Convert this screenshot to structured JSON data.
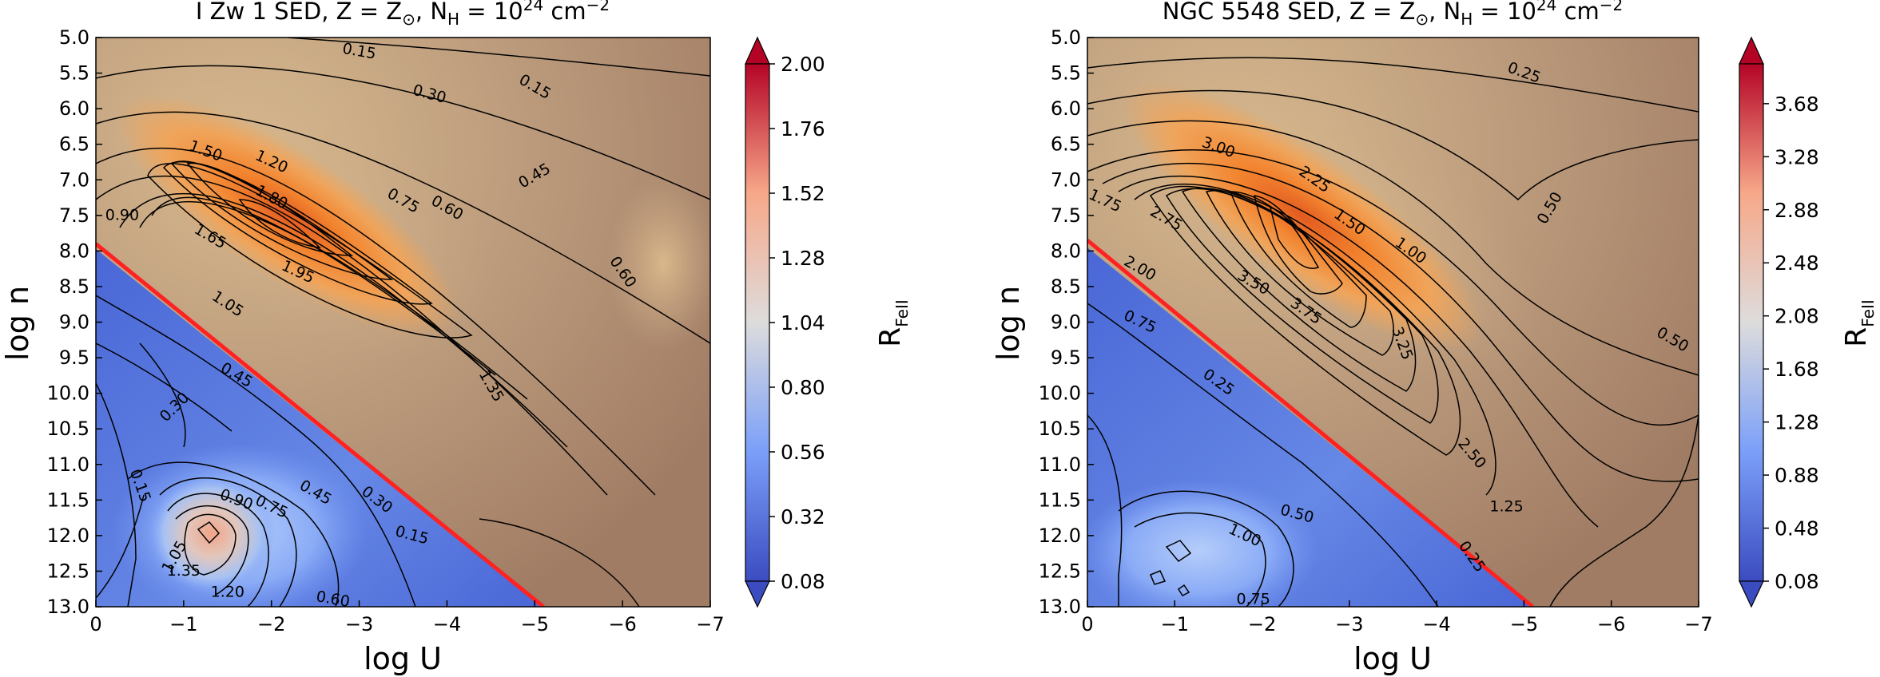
{
  "chart_data": [
    {
      "type": "heatmap",
      "title_prefix": "I Zw 1 SED, Z = Z",
      "title_sun_sub": "⊙",
      "title_mid": ", N",
      "title_h_sub": "H",
      "title_mid2": " = 10",
      "title_exp": "24",
      "title_suffix": " cm",
      "title_unit_exp": "−2",
      "xlabel": "log U",
      "ylabel": "log n",
      "colorbar_label_main": "R",
      "colorbar_label_sub": "FeII",
      "xlim": [
        0,
        -7
      ],
      "ylim": [
        5.0,
        13.0
      ],
      "x_ticks": [
        "0",
        "−1",
        "−2",
        "−3",
        "−4",
        "−5",
        "−6",
        "−7"
      ],
      "y_ticks": [
        "5.0",
        "5.5",
        "6.0",
        "6.5",
        "7.0",
        "7.5",
        "8.0",
        "8.5",
        "9.0",
        "9.5",
        "10.0",
        "10.5",
        "11.0",
        "11.5",
        "12.0",
        "12.5",
        "13.0"
      ],
      "colorbar_range": [
        0.08,
        2.0
      ],
      "colorbar_ticks": [
        "2.00",
        "1.76",
        "1.52",
        "1.28",
        "1.04",
        "0.80",
        "0.56",
        "0.32",
        "0.08"
      ],
      "boundary_line": {
        "color": "#ff2222",
        "from": [
          0.0,
          7.9
        ],
        "to": [
          -5.1,
          13.0
        ]
      },
      "peak": {
        "log_u": -2.2,
        "log_n": 8.0,
        "value": 1.98
      },
      "contour_levels": [
        0.15,
        0.3,
        0.45,
        0.6,
        0.75,
        0.9,
        1.05,
        1.2,
        1.35,
        1.5,
        1.65,
        1.8,
        1.95
      ],
      "contour_labels": [
        {
          "text": "0.15",
          "log_u": -3.0,
          "log_n": 5.2,
          "rot": 10
        },
        {
          "text": "0.30",
          "log_u": -3.8,
          "log_n": 5.8,
          "rot": 15
        },
        {
          "text": "0.15",
          "log_u": -5.0,
          "log_n": 5.7,
          "rot": 30
        },
        {
          "text": "1.50",
          "log_u": -1.25,
          "log_n": 6.6,
          "rot": 20
        },
        {
          "text": "1.20",
          "log_u": -2.0,
          "log_n": 6.75,
          "rot": 25
        },
        {
          "text": "1.80",
          "log_u": -2.0,
          "log_n": 7.25,
          "rot": 28
        },
        {
          "text": "0.75",
          "log_u": -3.5,
          "log_n": 7.3,
          "rot": 30
        },
        {
          "text": "0.60",
          "log_u": -4.0,
          "log_n": 7.4,
          "rot": 30
        },
        {
          "text": "0.45",
          "log_u": -5.0,
          "log_n": 6.95,
          "rot": -30
        },
        {
          "text": "0.90",
          "log_u": -0.3,
          "log_n": 7.5,
          "rot": 0
        },
        {
          "text": "1.65",
          "log_u": -1.3,
          "log_n": 7.8,
          "rot": 30
        },
        {
          "text": "1.95",
          "log_u": -2.3,
          "log_n": 8.3,
          "rot": 25
        },
        {
          "text": "0.60",
          "log_u": -6.0,
          "log_n": 8.3,
          "rot": 55
        },
        {
          "text": "1.05",
          "log_u": -1.5,
          "log_n": 8.75,
          "rot": 33
        },
        {
          "text": "0.45",
          "log_u": -1.6,
          "log_n": 9.75,
          "rot": 30
        },
        {
          "text": "1.35",
          "log_u": -4.5,
          "log_n": 9.9,
          "rot": 60
        },
        {
          "text": "0.30",
          "log_u": -0.9,
          "log_n": 10.2,
          "rot": -45
        },
        {
          "text": "0.30",
          "log_u": -3.2,
          "log_n": 11.5,
          "rot": 37
        },
        {
          "text": "0.15",
          "log_u": -0.5,
          "log_n": 11.3,
          "rot": 70
        },
        {
          "text": "0.90",
          "log_u": -1.6,
          "log_n": 11.5,
          "rot": 20
        },
        {
          "text": "0.75",
          "log_u": -2.0,
          "log_n": 11.6,
          "rot": 25
        },
        {
          "text": "0.45",
          "log_u": -2.5,
          "log_n": 11.4,
          "rot": 30
        },
        {
          "text": "0.15",
          "log_u": -3.6,
          "log_n": 12.0,
          "rot": 15
        },
        {
          "text": "1.05",
          "log_u": -0.9,
          "log_n": 12.3,
          "rot": -60
        },
        {
          "text": "1.35",
          "log_u": -1.0,
          "log_n": 12.5,
          "rot": 0
        },
        {
          "text": "1.20",
          "log_u": -1.5,
          "log_n": 12.8,
          "rot": 0
        },
        {
          "text": "0.60",
          "log_u": -2.7,
          "log_n": 12.9,
          "rot": 10
        }
      ]
    },
    {
      "type": "heatmap",
      "title_prefix": "NGC 5548 SED, Z = Z",
      "title_sun_sub": "⊙",
      "title_mid": ", N",
      "title_h_sub": "H",
      "title_mid2": " = 10",
      "title_exp": "24",
      "title_suffix": " cm",
      "title_unit_exp": "−2",
      "xlabel": "log U",
      "ylabel": "log n",
      "colorbar_label_main": "R",
      "colorbar_label_sub": "FeII",
      "xlim": [
        0,
        -7
      ],
      "ylim": [
        5.0,
        13.0
      ],
      "x_ticks": [
        "0",
        "−1",
        "−2",
        "−3",
        "−4",
        "−5",
        "−6",
        "−7"
      ],
      "y_ticks": [
        "5.0",
        "5.5",
        "6.0",
        "6.5",
        "7.0",
        "7.5",
        "8.0",
        "8.5",
        "9.0",
        "9.5",
        "10.0",
        "10.5",
        "11.0",
        "11.5",
        "12.0",
        "12.5",
        "13.0"
      ],
      "colorbar_range": [
        0.08,
        3.98
      ],
      "colorbar_ticks": [
        "3.68",
        "3.28",
        "2.88",
        "2.48",
        "2.08",
        "1.68",
        "1.28",
        "0.88",
        "0.48",
        "0.08"
      ],
      "boundary_line": {
        "color": "#ff2222",
        "from": [
          0.0,
          7.85
        ],
        "to": [
          -5.1,
          13.0
        ]
      },
      "peak": {
        "log_u": -2.3,
        "log_n": 7.9,
        "value": 3.95
      },
      "contour_levels": [
        0.25,
        0.5,
        0.75,
        1.0,
        1.25,
        1.5,
        1.75,
        2.0,
        2.25,
        2.5,
        2.75,
        3.0,
        3.25,
        3.5,
        3.75
      ],
      "contour_labels": [
        {
          "text": "0.25",
          "log_u": -5.0,
          "log_n": 5.5,
          "rot": 20
        },
        {
          "text": "3.00",
          "log_u": -1.5,
          "log_n": 6.55,
          "rot": 20
        },
        {
          "text": "2.25",
          "log_u": -2.6,
          "log_n": 7.0,
          "rot": 35
        },
        {
          "text": "1.50",
          "log_u": -3.0,
          "log_n": 7.6,
          "rot": 35
        },
        {
          "text": "1.00",
          "log_u": -3.7,
          "log_n": 8.0,
          "rot": 35
        },
        {
          "text": "0.50",
          "log_u": -5.3,
          "log_n": 7.4,
          "rot": -60
        },
        {
          "text": "1.75",
          "log_u": -0.2,
          "log_n": 7.3,
          "rot": 25
        },
        {
          "text": "2.75",
          "log_u": -0.9,
          "log_n": 7.55,
          "rot": 30
        },
        {
          "text": "2.00",
          "log_u": -0.6,
          "log_n": 8.25,
          "rot": 30
        },
        {
          "text": "3.50",
          "log_u": -1.9,
          "log_n": 8.45,
          "rot": 30
        },
        {
          "text": "3.75",
          "log_u": -2.5,
          "log_n": 8.85,
          "rot": 35
        },
        {
          "text": "0.75",
          "log_u": -0.6,
          "log_n": 9.0,
          "rot": 25
        },
        {
          "text": "3.25",
          "log_u": -3.6,
          "log_n": 9.3,
          "rot": 70
        },
        {
          "text": "0.50",
          "log_u": -6.7,
          "log_n": 9.25,
          "rot": 30
        },
        {
          "text": "0.25",
          "log_u": -1.5,
          "log_n": 9.85,
          "rot": 35
        },
        {
          "text": "2.50",
          "log_u": -4.4,
          "log_n": 10.85,
          "rot": 50
        },
        {
          "text": "1.25",
          "log_u": -4.8,
          "log_n": 11.6,
          "rot": 0
        },
        {
          "text": "0.50",
          "log_u": -2.4,
          "log_n": 11.7,
          "rot": 15
        },
        {
          "text": "1.00",
          "log_u": -1.8,
          "log_n": 12.0,
          "rot": 25
        },
        {
          "text": "0.25",
          "log_u": -4.4,
          "log_n": 12.3,
          "rot": 55
        },
        {
          "text": "0.75",
          "log_u": -1.9,
          "log_n": 12.9,
          "rot": 0
        }
      ]
    }
  ]
}
